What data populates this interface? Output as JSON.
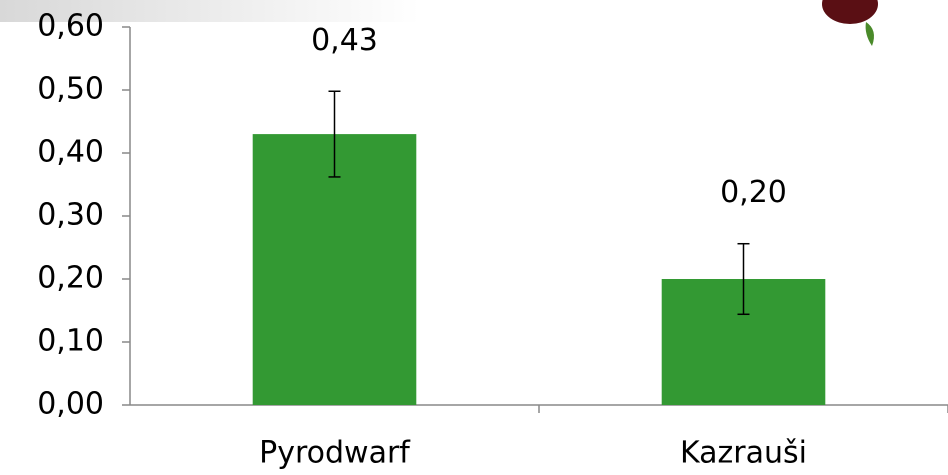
{
  "chart_data": {
    "type": "bar",
    "categories": [
      "Pyrodwarf",
      "Kazrauši"
    ],
    "values": [
      0.43,
      0.2
    ],
    "value_labels": [
      "0,43",
      "0,20"
    ],
    "errors": [
      0.068,
      0.056
    ],
    "color": "#339933",
    "ylim": [
      0,
      0.6
    ],
    "yticks": [
      {
        "value": 0,
        "label": "0,00"
      },
      {
        "value": 0.1,
        "label": "0,10"
      },
      {
        "value": 0.2,
        "label": "0,20"
      },
      {
        "value": 0.3,
        "label": "0,30"
      },
      {
        "value": 0.4,
        "label": "0,40"
      },
      {
        "value": 0.5,
        "label": "0,50"
      },
      {
        "value": 0.6,
        "label": "0,60"
      }
    ],
    "grid": false
  }
}
